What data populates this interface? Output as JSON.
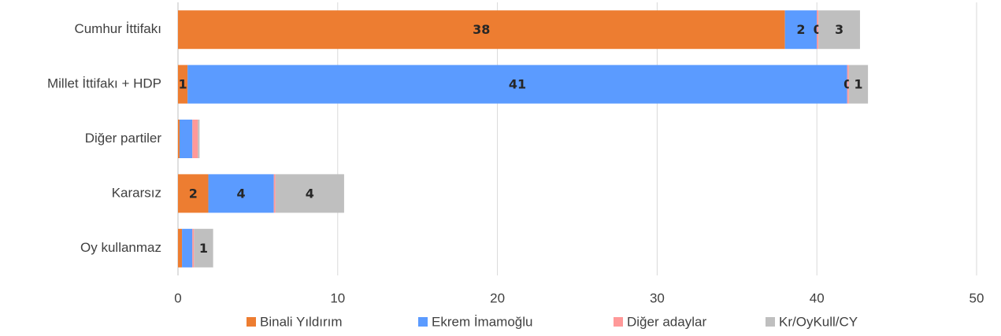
{
  "chart_data": {
    "type": "stacked_barh",
    "categories": [
      "Cumhur İttifakı",
      "Millet İttifakı + HDP",
      "Diğer partiler",
      "Kararsız",
      "Oy kullanmaz"
    ],
    "series": [
      {
        "name": "Binali Yıldırım",
        "color": "#ed7d31",
        "values": [
          38.0,
          0.6,
          0.1,
          1.9,
          0.25
        ],
        "value_labels": [
          "38",
          "1",
          null,
          "2",
          null
        ]
      },
      {
        "name": "Ekrem İmamoğlu",
        "color": "#5b9bff",
        "values": [
          2.0,
          41.3,
          0.8,
          4.1,
          0.65
        ],
        "value_labels": [
          "2",
          "41",
          null,
          "4",
          null
        ]
      },
      {
        "name": "Diğer adaylar",
        "color": "#ff9999",
        "values": [
          0.1,
          0.1,
          0.35,
          0.1,
          0.1
        ],
        "value_labels": [
          "0",
          "0",
          null,
          null,
          null
        ]
      },
      {
        "name": "Kr/OyKull/CY",
        "color": "#bfbfbf",
        "values": [
          2.6,
          1.2,
          0.1,
          4.3,
          1.2
        ],
        "value_labels": [
          "3",
          "1",
          null,
          "4",
          "1"
        ]
      }
    ],
    "xlim": [
      0,
      50
    ],
    "xticks": [
      0,
      10,
      20,
      30,
      40,
      50
    ],
    "grid": true,
    "legend": "bottom"
  }
}
